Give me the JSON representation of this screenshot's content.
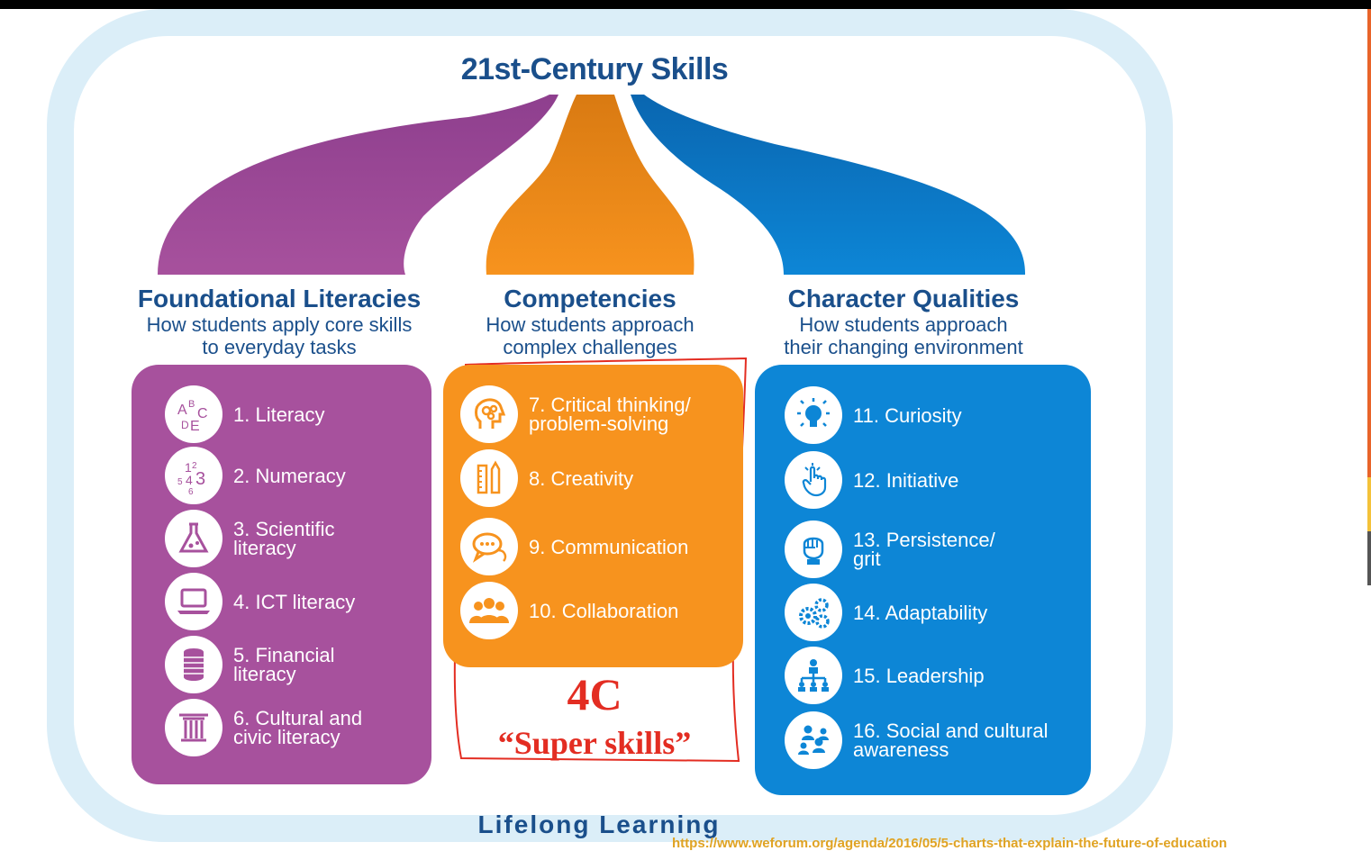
{
  "title": "21st-Century Skills",
  "columns": [
    {
      "heading": "Foundational Literacies",
      "subtitle": "How students apply core skills\nto everyday tasks",
      "color": "#a7519d",
      "items": [
        {
          "label": "1. Literacy",
          "icon": "abc-letters-icon"
        },
        {
          "label": "2. Numeracy",
          "icon": "numbers-icon"
        },
        {
          "label": "3. Scientific\n    literacy",
          "icon": "flask-icon"
        },
        {
          "label": "4. ICT literacy",
          "icon": "laptop-icon"
        },
        {
          "label": "5. Financial\n    literacy",
          "icon": "coins-icon"
        },
        {
          "label": "6. Cultural and\n    civic literacy",
          "icon": "column-icon"
        }
      ]
    },
    {
      "heading": "Competencies",
      "subtitle": "How students approach\ncomplex challenges",
      "color": "#f7931e",
      "items": [
        {
          "label": "7. Critical thinking/\n    problem-solving",
          "icon": "head-gears-icon"
        },
        {
          "label": "8. Creativity",
          "icon": "pencil-ruler-icon"
        },
        {
          "label": "9. Communication",
          "icon": "speech-bubbles-icon"
        },
        {
          "label": "10. Collaboration",
          "icon": "people-icon"
        }
      ]
    },
    {
      "heading": "Character Qualities",
      "subtitle": "How students approach\ntheir changing environment",
      "color": "#0d86d6",
      "items": [
        {
          "label": "11. Curiosity",
          "icon": "lightbulb-icon"
        },
        {
          "label": "12. Initiative",
          "icon": "pointing-hand-icon"
        },
        {
          "label": "13. Persistence/\n      grit",
          "icon": "fist-icon"
        },
        {
          "label": "14. Adaptability",
          "icon": "gears-icon"
        },
        {
          "label": "15. Leadership",
          "icon": "org-chart-icon"
        },
        {
          "label": "16. Social and cultural\n      awareness",
          "icon": "group-icon"
        }
      ]
    }
  ],
  "annotation": {
    "code": "4C",
    "caption": "“Super skills”",
    "color": "#e32d22"
  },
  "footer": "Lifelong Learning",
  "source_url": "https://www.weforum.org/agenda/2016/05/5-charts-that-explain-the-future-of-education"
}
